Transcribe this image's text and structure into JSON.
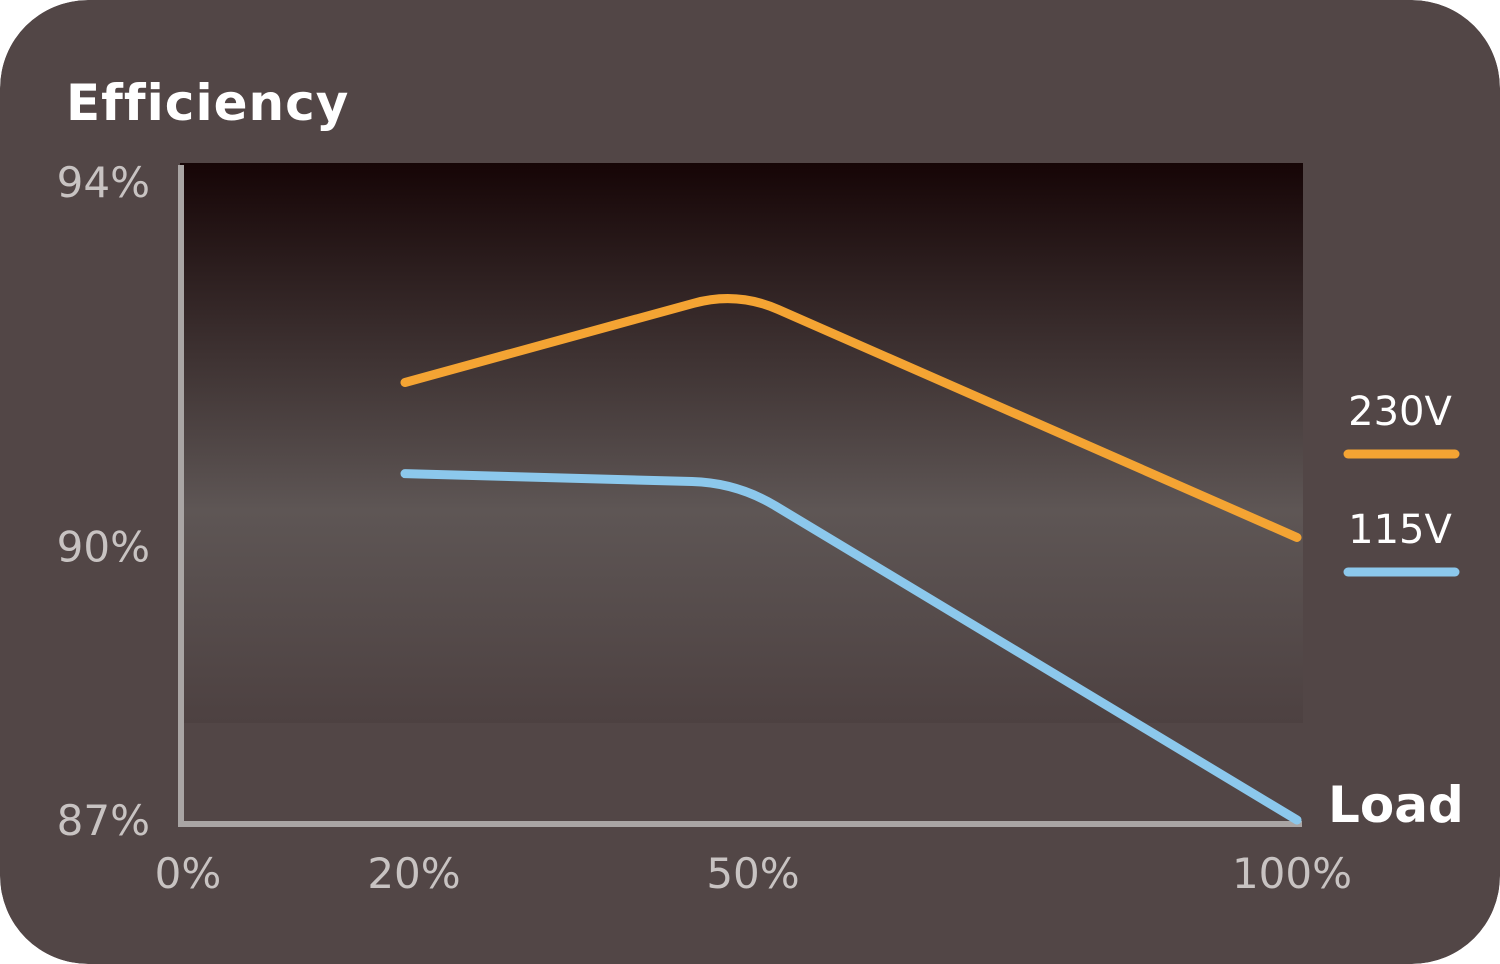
{
  "chart_data": {
    "type": "line",
    "title": "Efficiency",
    "xlabel": "Load",
    "ylabel": "",
    "x_tick_labels": [
      "0%",
      "20%",
      "50%",
      "100%"
    ],
    "y_tick_labels": [
      "94%",
      "90%",
      "87%"
    ],
    "ylim": [
      87,
      94
    ],
    "legend_position": "right",
    "grid": false,
    "series": [
      {
        "name": "230V",
        "color": "#f4a433",
        "points": [
          {
            "x": "20%",
            "y": 91.8
          },
          {
            "x": "50%",
            "y": 92.8
          },
          {
            "x": "100%",
            "y": 90.1
          }
        ]
      },
      {
        "name": "115V",
        "color": "#8cc8ec",
        "points": [
          {
            "x": "20%",
            "y": 90.8
          },
          {
            "x": "50%",
            "y": 90.7
          },
          {
            "x": "100%",
            "y": 87.0
          }
        ]
      }
    ]
  },
  "colors": {
    "background": "#524646",
    "plot_top": "#160506",
    "plot_mid": "#5e5655",
    "plot_bottom": "#4d4141",
    "axis": "#a9a5a4"
  }
}
